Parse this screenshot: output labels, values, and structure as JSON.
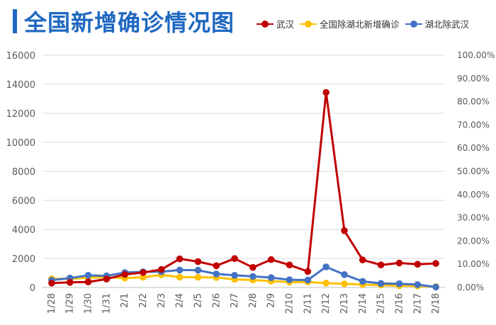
{
  "title": "全国新增确诊情况图",
  "colors": {
    "title": "#1f68c1",
    "wuhan": "#c00000",
    "other": "#ffc000",
    "hubei": "#4472c4",
    "grid": "#d9d9d9"
  },
  "legend": [
    {
      "label": "武汉",
      "color": "#c00000"
    },
    {
      "label": "全国除湖北新增确诊",
      "color": "#ffc000"
    },
    {
      "label": "湖北除武汉",
      "color": "#4472c4"
    }
  ],
  "chart_data": {
    "type": "line",
    "title": "全国新增确诊情况图",
    "categories": [
      "1/28",
      "1/29",
      "1/30",
      "1/31",
      "2/1",
      "2/2",
      "2/3",
      "2/4",
      "2/5",
      "2/6",
      "2/7",
      "2/8",
      "2/9",
      "2/10",
      "2/11",
      "2/12",
      "2/13",
      "2/14",
      "2/15",
      "2/16",
      "2/17",
      "2/18"
    ],
    "y_left": {
      "ticks": [
        "0",
        "2000",
        "4000",
        "6000",
        "8000",
        "10000",
        "12000",
        "14000",
        "16000"
      ],
      "ylim": [
        0,
        16000
      ]
    },
    "y_right": {
      "ticks": [
        "0.00%",
        "10.00%",
        "20.00%",
        "30.00%",
        "40.00%",
        "50.00%",
        "60.00%",
        "70.00%",
        "80.00%",
        "90.00%",
        "100.00%"
      ],
      "ylim": [
        0,
        100
      ]
    },
    "grid": true,
    "legend_position": "top-right",
    "series": [
      {
        "name": "武汉",
        "values": [
          300,
          350,
          380,
          580,
          900,
          1030,
          1240,
          1970,
          1780,
          1500,
          1990,
          1380,
          1920,
          1550,
          1100,
          13440,
          3910,
          1900,
          1550,
          1690,
          1600,
          1660
        ]
      },
      {
        "name": "全国除湖北新增确诊",
        "values": [
          600,
          600,
          680,
          700,
          650,
          700,
          870,
          710,
          700,
          690,
          560,
          510,
          440,
          370,
          380,
          300,
          250,
          200,
          160,
          120,
          100,
          60
        ]
      },
      {
        "name": "湖北除武汉",
        "values": [
          500,
          650,
          840,
          800,
          1030,
          1080,
          1090,
          1200,
          1190,
          930,
          840,
          760,
          680,
          530,
          510,
          1420,
          890,
          420,
          280,
          260,
          200,
          30
        ]
      }
    ]
  }
}
